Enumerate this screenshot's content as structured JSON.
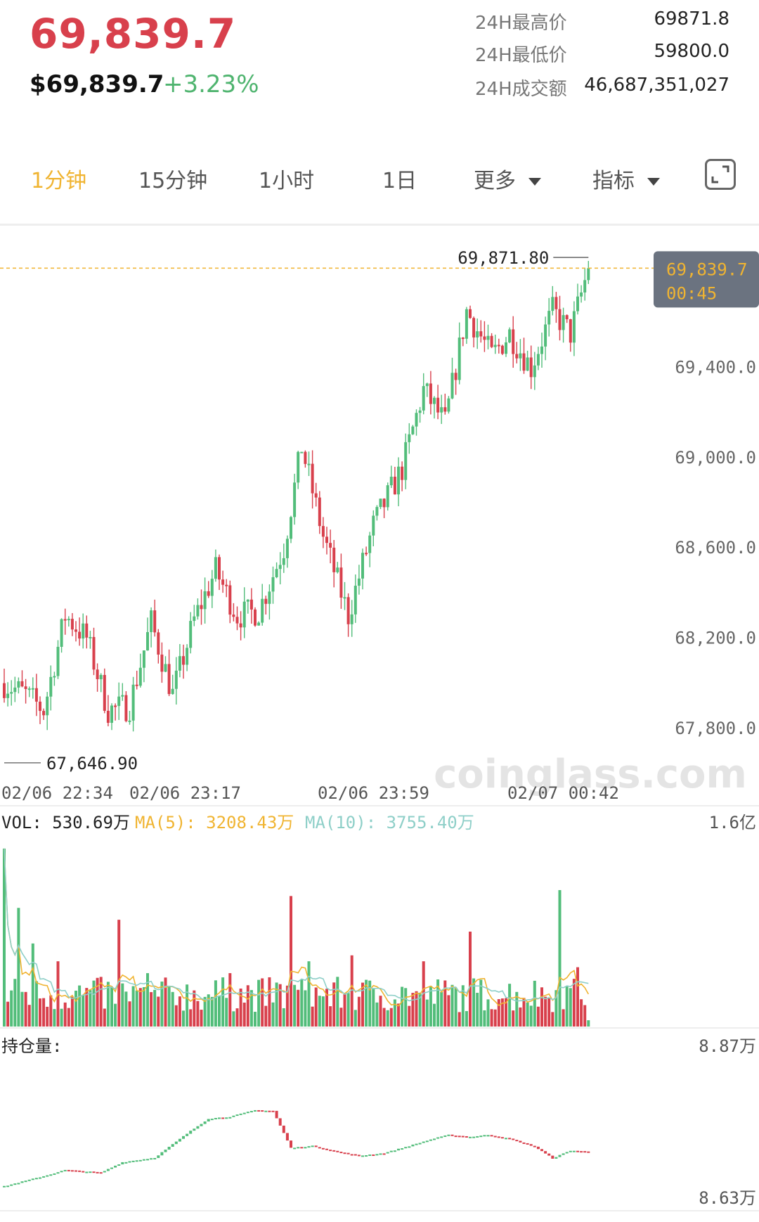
{
  "header": {
    "price": "69,839.7",
    "usd_price": "$69,839.7",
    "change": "+3.23%",
    "stats": [
      {
        "label": "24H最高价",
        "value": "69871.8"
      },
      {
        "label": "24H最低价",
        "value": "59800.0"
      },
      {
        "label": "24H成交额",
        "value": "46,687,351,027"
      }
    ]
  },
  "tabs": [
    {
      "label": "1分钟",
      "active": true
    },
    {
      "label": "15分钟",
      "active": false
    },
    {
      "label": "1小时",
      "active": false
    },
    {
      "label": "1日",
      "active": false
    },
    {
      "label": "更多",
      "active": false,
      "dropdown": true
    },
    {
      "label": "指标",
      "active": false,
      "dropdown": true
    }
  ],
  "expand_icon": "expand-icon",
  "colors": {
    "up": "#52bd7a",
    "down": "#d8404c",
    "accent": "#f0b431",
    "ma5": "#f0b431",
    "ma10": "#8ecfc8"
  },
  "watermark": "coinglass.com",
  "chart_data": [
    {
      "type": "candlestick",
      "y_ticks": [
        "69,400.0",
        "69,000.0",
        "68,600.0",
        "68,200.0",
        "67,800.0"
      ],
      "y_tick_values": [
        69400,
        69000,
        68600,
        68200,
        67800
      ],
      "x_ticks": [
        "02/06 22:34",
        "02/06 23:17",
        "02/06 23:59",
        "02/07 00:42"
      ],
      "ylim": [
        67600,
        70000
      ],
      "high_label": "69,871.80",
      "low_label": "67,646.90",
      "high_value": 69871.8,
      "low_value": 67646.9,
      "last_price": "69,839.7",
      "last_price_value": 69839.7,
      "countdown": "00:45",
      "anchors": [
        [
          0,
          68000
        ],
        [
          6,
          67950
        ],
        [
          11,
          67880
        ],
        [
          17,
          68300
        ],
        [
          23,
          68200
        ],
        [
          29,
          67880
        ],
        [
          35,
          67900
        ],
        [
          41,
          68270
        ],
        [
          47,
          67950
        ],
        [
          53,
          68280
        ],
        [
          59,
          68500
        ],
        [
          65,
          68300
        ],
        [
          71,
          68320
        ],
        [
          78,
          68600
        ],
        [
          83,
          69050
        ],
        [
          89,
          68650
        ],
        [
          96,
          68300
        ],
        [
          103,
          68700
        ],
        [
          111,
          68950
        ],
        [
          117,
          69300
        ],
        [
          123,
          69150
        ],
        [
          129,
          69650
        ],
        [
          136,
          69450
        ],
        [
          141,
          69550
        ],
        [
          147,
          69400
        ],
        [
          153,
          69650
        ],
        [
          158,
          69550
        ],
        [
          163,
          69839.7
        ]
      ]
    },
    {
      "type": "bar",
      "title": "VOL: 530.69万",
      "ma5_label": "MA(5): 3208.43万",
      "ma10_label": "MA(10): 3755.40万",
      "y_max_label": "1.6亿",
      "ylim": [
        0,
        160000000
      ],
      "peaks": [
        [
          0,
          150000000
        ],
        [
          4,
          100000000
        ],
        [
          8,
          70000000
        ],
        [
          15,
          55000000
        ],
        [
          32,
          90000000
        ],
        [
          40,
          45000000
        ],
        [
          63,
          45000000
        ],
        [
          80,
          110000000
        ],
        [
          85,
          55000000
        ],
        [
          97,
          60000000
        ],
        [
          117,
          55000000
        ],
        [
          130,
          80000000
        ],
        [
          155,
          115000000
        ],
        [
          160,
          50000000
        ],
        [
          163,
          5306900
        ]
      ]
    },
    {
      "type": "step",
      "title": "持仓量:",
      "y_max_label": "8.87万",
      "y_min_label": "8.63万",
      "ylim": [
        86300,
        88700
      ],
      "anchors": [
        [
          0,
          86330
        ],
        [
          12,
          86500
        ],
        [
          17,
          86580
        ],
        [
          22,
          86560
        ],
        [
          27,
          86540
        ],
        [
          33,
          86700
        ],
        [
          42,
          86770
        ],
        [
          52,
          87180
        ],
        [
          57,
          87370
        ],
        [
          63,
          87400
        ],
        [
          70,
          87500
        ],
        [
          75,
          87490
        ],
        [
          80,
          86920
        ],
        [
          86,
          86950
        ],
        [
          93,
          86860
        ],
        [
          99,
          86800
        ],
        [
          106,
          86840
        ],
        [
          113,
          86950
        ],
        [
          119,
          87050
        ],
        [
          124,
          87120
        ],
        [
          130,
          87090
        ],
        [
          135,
          87120
        ],
        [
          141,
          87060
        ],
        [
          148,
          86940
        ],
        [
          153,
          86760
        ],
        [
          158,
          86880
        ],
        [
          163,
          86860
        ]
      ]
    }
  ]
}
